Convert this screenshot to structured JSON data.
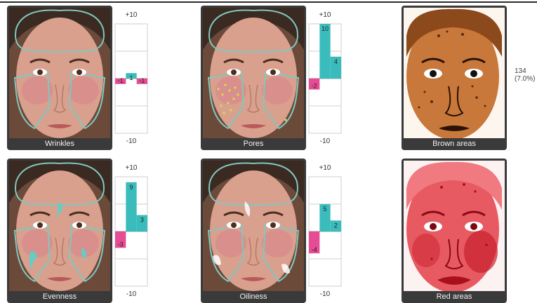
{
  "analyses": [
    {
      "label": "Wrinkles",
      "scale_max": "+10",
      "scale_min": "-10",
      "scores": [
        -1,
        1,
        -1
      ]
    },
    {
      "label": "Pores",
      "scale_max": "+10",
      "scale_min": "-10",
      "scores": [
        -2,
        10,
        4
      ]
    },
    {
      "label": "Brown areas"
    },
    {
      "label": "Evenness",
      "scale_max": "+10",
      "scale_min": "-10",
      "scores": [
        -3,
        9,
        3
      ]
    },
    {
      "label": "Oiliness",
      "scale_max": "+10",
      "scale_min": "-10",
      "scores": [
        -4,
        5,
        2
      ]
    },
    {
      "label": "Red areas"
    }
  ],
  "brown_areas_count": "134",
  "brown_areas_percent": "(7.0%)",
  "colors": {
    "positive_bar": "#3bbcbc",
    "negative_bar": "#e54c93",
    "card_frame": "#3a3a3a",
    "zone_outline": "#7fc8c0"
  }
}
